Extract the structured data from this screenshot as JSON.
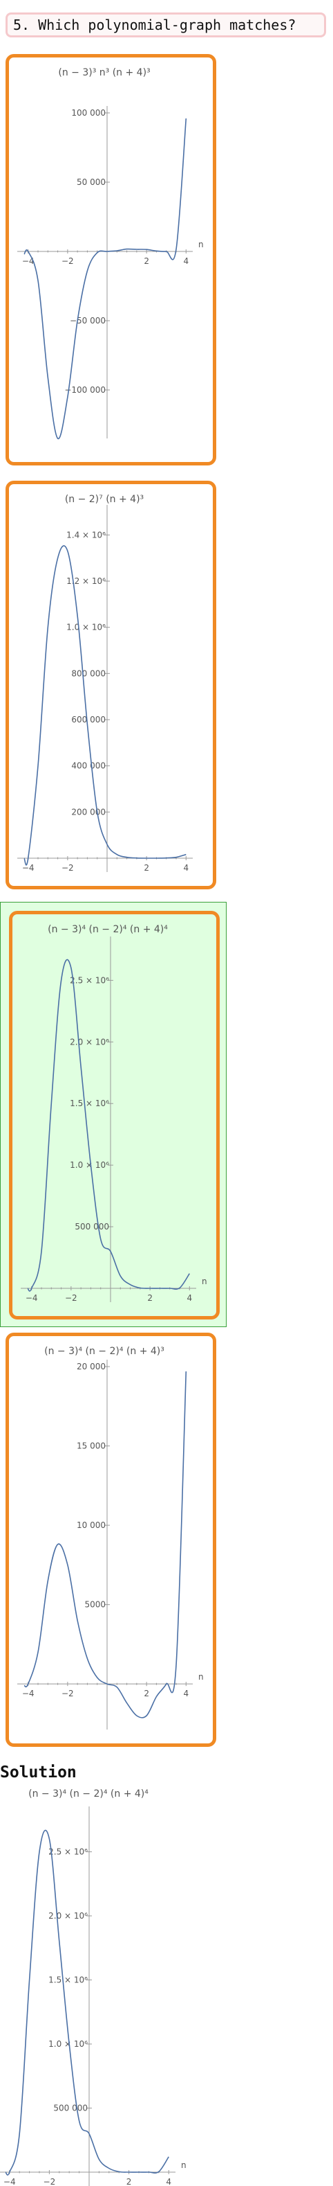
{
  "question": {
    "text": "5. Which polynomial-graph matches?"
  },
  "solution": {
    "label": "Solution"
  },
  "colors": {
    "choice_border": "#f08a24",
    "selected_bg": "#e0ffe0",
    "curve": "#4a6fa5",
    "axis": "#999999",
    "question_border": "#f5c9cc"
  },
  "choices": [
    {
      "id": "a",
      "selected": false
    },
    {
      "id": "b",
      "selected": false
    },
    {
      "id": "c",
      "selected": true
    },
    {
      "id": "d",
      "selected": false
    }
  ],
  "chart_data": [
    {
      "type": "line",
      "title": "(n − 3)³ n³ (n + 4)³",
      "xlabel": "n",
      "ylabel": "",
      "xlim": [
        -4.2,
        4.2
      ],
      "ylim": [
        -125000,
        100000
      ],
      "x": [
        -4.2,
        -4,
        -3.5,
        -3,
        -2.5,
        -2,
        -1.5,
        -1,
        -0.5,
        0,
        0.5,
        1,
        1.5,
        2,
        2.5,
        3,
        3.5,
        4
      ],
      "y": [
        -2000,
        0,
        -21000,
        -91000,
        -135000,
        -105000,
        -50000,
        -14000,
        -900,
        0,
        500,
        1700,
        1500,
        1400,
        330,
        0,
        1600,
        96000
      ],
      "xticks": [
        -4,
        -2,
        2,
        4
      ],
      "yticks": [
        {
          "value": 100000,
          "label": "100 000"
        },
        {
          "value": 50000,
          "label": "50 000"
        },
        {
          "value": -50000,
          "label": "−50 000"
        },
        {
          "value": -100000,
          "label": "−100 000"
        }
      ]
    },
    {
      "type": "line",
      "title": "(n − 2)⁷ (n + 4)³",
      "xlabel": "",
      "ylabel": "",
      "xlim": [
        -4.2,
        4.2
      ],
      "ylim": [
        0,
        1500000
      ],
      "x": [
        -4.2,
        -4,
        -3.5,
        -3,
        -2.5,
        -2,
        -1.5,
        -1,
        -0.5,
        0,
        0.5,
        1,
        1.5,
        2,
        2.5,
        3,
        3.5,
        4
      ],
      "y": [
        0,
        0,
        400000,
        1000000,
        1300000,
        1330000,
        1050000,
        580000,
        200000,
        60000,
        16000,
        4000,
        600,
        0,
        100,
        800,
        4000,
        16000
      ],
      "xticks": [
        -4,
        -2,
        2,
        4
      ],
      "yticks": [
        {
          "value": 1400000,
          "label": "1.4 × 10⁶"
        },
        {
          "value": 1200000,
          "label": "1.2 × 10⁶"
        },
        {
          "value": 1000000,
          "label": "1.0 × 10⁶"
        },
        {
          "value": 800000,
          "label": "800 000"
        },
        {
          "value": 600000,
          "label": "600 000"
        },
        {
          "value": 400000,
          "label": "400 000"
        },
        {
          "value": 200000,
          "label": "200 000"
        }
      ]
    },
    {
      "type": "line",
      "title": "(n − 3)⁴ (n − 2)⁴ (n + 4)⁴",
      "xlabel": "n",
      "ylabel": "",
      "xlim": [
        -4.2,
        4.2
      ],
      "ylim": [
        0,
        2800000
      ],
      "x": [
        -4.2,
        -4,
        -3.5,
        -3,
        -2.5,
        -2,
        -1.5,
        -1,
        -0.5,
        0,
        0.5,
        1,
        1.5,
        2,
        2.5,
        3,
        3.5,
        4
      ],
      "y": [
        0,
        0,
        300000,
        1500000,
        2500000,
        2600000,
        1800000,
        1000000,
        400000,
        300000,
        100000,
        30000,
        3000,
        0,
        100,
        0,
        3000,
        120000
      ],
      "xticks": [
        -4,
        -2,
        2,
        4
      ],
      "yticks": [
        {
          "value": 2500000,
          "label": "2.5 × 10⁶"
        },
        {
          "value": 2000000,
          "label": "2.0 × 10⁶"
        },
        {
          "value": 1500000,
          "label": "1.5 × 10⁶"
        },
        {
          "value": 1000000,
          "label": "1.0 × 10⁶"
        },
        {
          "value": 500000,
          "label": "500 000"
        }
      ]
    },
    {
      "type": "line",
      "title": "(n − 3)⁴ (n − 2)⁴ (n + 4)³",
      "xlabel": "n",
      "ylabel": "",
      "xlim": [
        -4.2,
        4.2
      ],
      "ylim": [
        -2000,
        20000
      ],
      "x": [
        -4.2,
        -4,
        -3.5,
        -3,
        -2.5,
        -2,
        -1.5,
        -1,
        -0.5,
        0,
        0.5,
        1,
        1.5,
        2,
        2.5,
        3,
        3.5,
        4
      ],
      "y": [
        -100,
        0,
        2000,
        6500,
        8800,
        7500,
        4000,
        1600,
        400,
        0,
        -200,
        -1200,
        -2000,
        -2000,
        -800,
        0,
        1200,
        19700
      ],
      "xticks": [
        -4,
        -2,
        2,
        4
      ],
      "yticks": [
        {
          "value": 20000,
          "label": "20 000"
        },
        {
          "value": 15000,
          "label": "15 000"
        },
        {
          "value": 10000,
          "label": "10 000"
        },
        {
          "value": 5000,
          "label": "5000"
        }
      ]
    },
    {
      "type": "line",
      "title": "(n − 3)⁴ (n − 2)⁴ (n + 4)⁴",
      "xlabel": "n",
      "ylabel": "",
      "xlim": [
        -4.2,
        4.2
      ],
      "ylim": [
        0,
        2800000
      ],
      "x": [
        -4.2,
        -4,
        -3.5,
        -3,
        -2.5,
        -2,
        -1.5,
        -1,
        -0.5,
        0,
        0.5,
        1,
        1.5,
        2,
        2.5,
        3,
        3.5,
        4
      ],
      "y": [
        0,
        0,
        300000,
        1500000,
        2500000,
        2600000,
        1800000,
        1000000,
        400000,
        300000,
        100000,
        30000,
        3000,
        0,
        100,
        0,
        3000,
        120000
      ],
      "xticks": [
        -4,
        -2,
        2,
        4
      ],
      "yticks": [
        {
          "value": 2500000,
          "label": "2.5 × 10⁶"
        },
        {
          "value": 2000000,
          "label": "2.0 × 10⁶"
        },
        {
          "value": 1500000,
          "label": "1.5 × 10⁶"
        },
        {
          "value": 1000000,
          "label": "1.0 × 10⁶"
        },
        {
          "value": 500000,
          "label": "500 000"
        }
      ]
    }
  ]
}
